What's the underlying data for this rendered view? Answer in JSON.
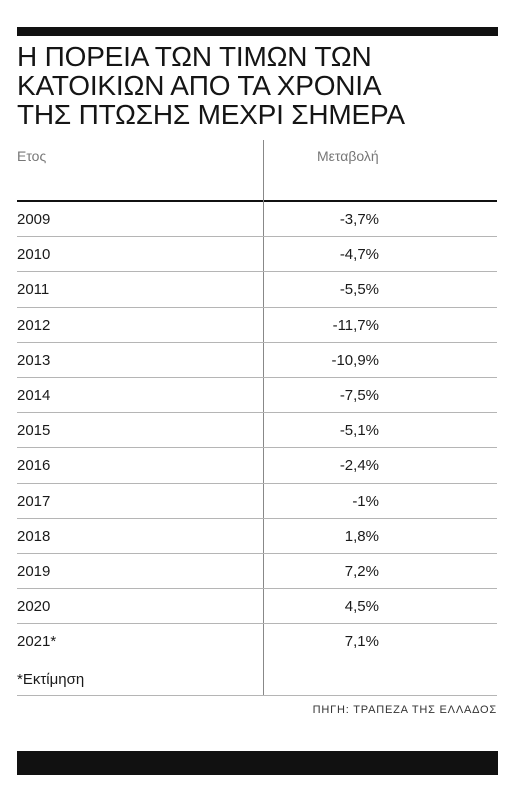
{
  "title_lines": [
    "Η ΠΟΡΕΙΑ ΤΩΝ ΤΙΜΩΝ ΤΩΝ",
    "ΚΑΤΟΙΚΙΩΝ ΑΠΟ ΤΑ ΧΡΟΝΙΑ",
    "ΤΗΣ ΠΤΩΣΗΣ ΜΕΧΡΙ ΣΗΜΕΡΑ"
  ],
  "columns": {
    "year": "Ετος",
    "change": "Μεταβολή"
  },
  "rows": [
    {
      "year": "2009",
      "change": "-3,7%"
    },
    {
      "year": "2010",
      "change": "-4,7%"
    },
    {
      "year": "2011",
      "change": "-5,5%"
    },
    {
      "year": "2012",
      "change": "-11,7%"
    },
    {
      "year": "2013",
      "change": "-10,9%"
    },
    {
      "year": "2014",
      "change": "-7,5%"
    },
    {
      "year": "2015",
      "change": "-5,1%"
    },
    {
      "year": "2016",
      "change": "-2,4%"
    },
    {
      "year": "2017",
      "change": "-1%"
    },
    {
      "year": "2018",
      "change": "1,8%"
    },
    {
      "year": "2019",
      "change": "7,2%"
    },
    {
      "year": "2020",
      "change": "4,5%"
    },
    {
      "year": "2021*",
      "change": "7,1%"
    }
  ],
  "footnote": "*Εκτίμηση",
  "source": "ΠΗΓΗ: ΤΡΑΠΕΖΑ ΤΗΣ ΕΛΛΑΔΟΣ"
}
